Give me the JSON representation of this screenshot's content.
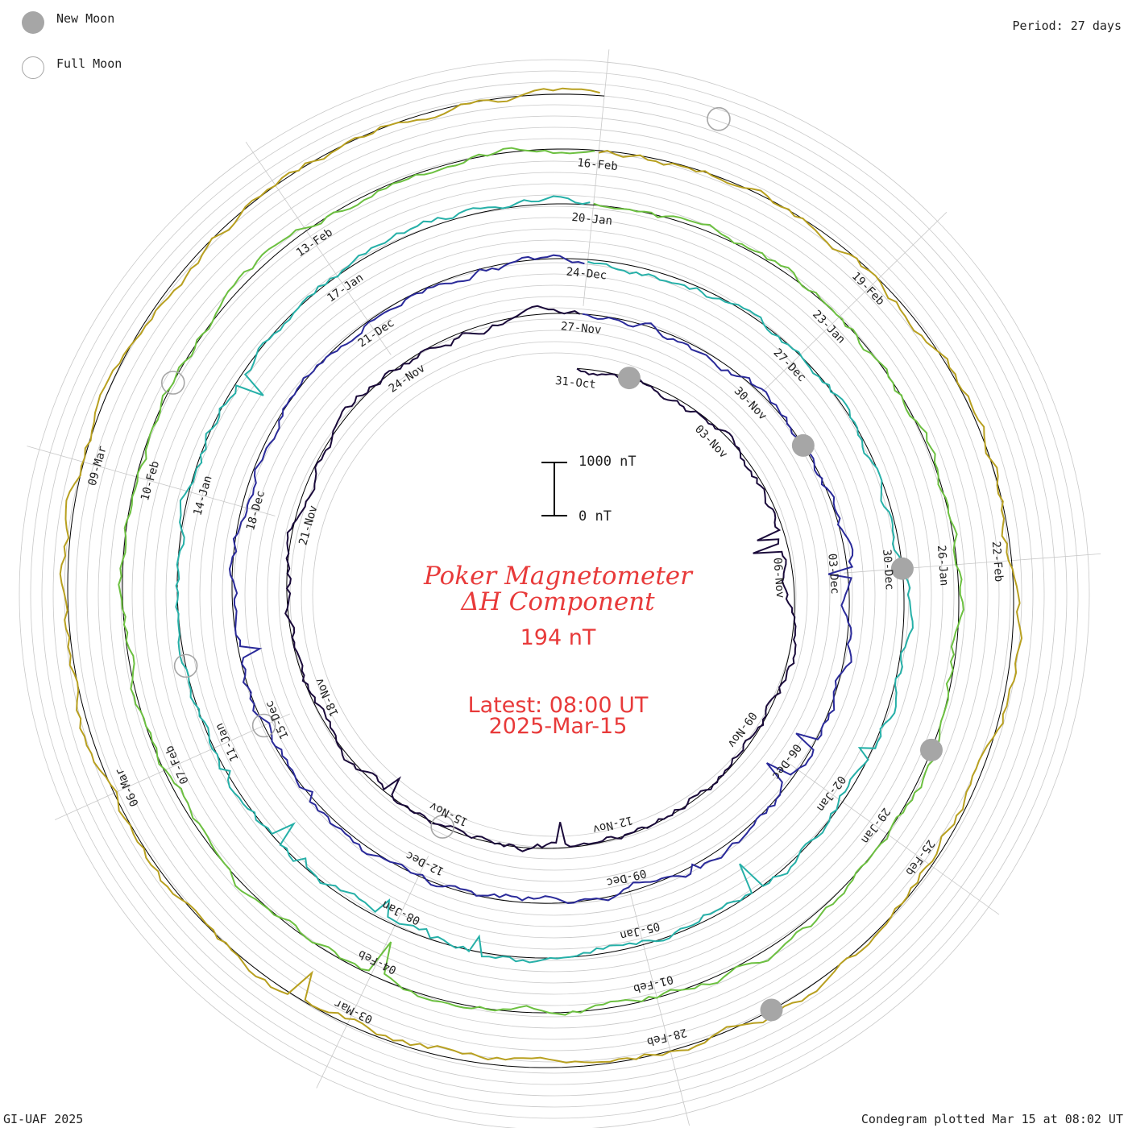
{
  "legend": {
    "new_moon": "New Moon",
    "full_moon": "Full Moon"
  },
  "period_label": "Period: 27 days",
  "title": {
    "line1": "Poker Magnetometer",
    "line2": "ΔH Component"
  },
  "current_value": "194 nT",
  "latest_time": "Latest: 08:00 UT",
  "latest_date": "2025-Mar-15",
  "scale_bar": {
    "top_label": "1000 nT",
    "bottom_label": "0 nT"
  },
  "footer": {
    "left": "GI-UAF 2025",
    "right": "Condegram plotted Mar 15 at 08:02 UT"
  },
  "colors": {
    "title": "#e83a3a",
    "moon": "#a6a6a6",
    "grid": "#c8c8c8"
  },
  "chart_data": {
    "type": "line",
    "period_days": 27,
    "start_date": "2024-10-31",
    "end_date": "2025-03-15",
    "series": [
      {
        "cycle": 1,
        "start": "31-Oct",
        "color": "#1a0a3a"
      },
      {
        "cycle": 2,
        "start": "27-Nov",
        "color": "#2a2a9a"
      },
      {
        "cycle": 3,
        "start": "24-Dec",
        "color": "#26b0a8"
      },
      {
        "cycle": 4,
        "start": "20-Jan",
        "color": "#6cc040"
      },
      {
        "cycle": 5,
        "start": "16-Feb",
        "color": "#b8a020"
      },
      {
        "cycle": 6,
        "start": "15-Mar",
        "color": "#c01010"
      }
    ],
    "date_labels": [
      [
        "31-Oct",
        "03-Nov",
        "06-Nov",
        "09-Nov",
        "12-Nov",
        "15-Nov",
        "18-Nov",
        "21-Nov",
        "24-Nov"
      ],
      [
        "27-Nov",
        "30-Nov",
        "03-Dec",
        "06-Dec",
        "09-Dec",
        "12-Dec",
        "15-Dec",
        "18-Dec",
        "21-Dec"
      ],
      [
        "24-Dec",
        "27-Dec",
        "30-Dec",
        "02-Jan",
        "05-Jan",
        "08-Jan",
        "11-Jan",
        "14-Jan",
        "17-Jan"
      ],
      [
        "20-Jan",
        "23-Jan",
        "26-Jan",
        "29-Jan",
        "01-Feb",
        "04-Feb",
        "07-Feb",
        "10-Feb",
        "13-Feb"
      ],
      [
        "16-Feb",
        "19-Feb",
        "22-Feb",
        "25-Feb",
        "28-Feb",
        "03-Mar",
        "06-Mar",
        "09-Mar"
      ]
    ],
    "new_moons": [
      "01-Nov",
      "01-Dec",
      "30-Dec",
      "29-Jan",
      "28-Feb"
    ],
    "full_moons": [
      "15-Nov",
      "15-Dec",
      "13-Jan",
      "12-Feb",
      "14-Mar"
    ],
    "baseline_nT": 0,
    "scale_nT": 1000
  }
}
